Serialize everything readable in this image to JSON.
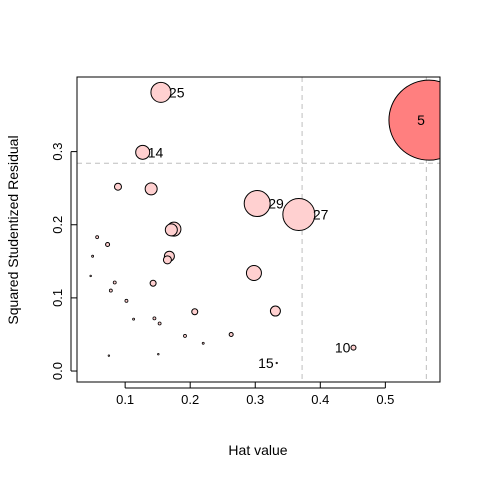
{
  "chart_data": {
    "type": "scatter",
    "title": "",
    "xlabel": "Hat value",
    "ylabel": "Squared Studentized Residual",
    "xlim": [
      0.026,
      0.584
    ],
    "ylim": [
      -0.015,
      0.402
    ],
    "x_ticks": [
      0.1,
      0.2,
      0.3,
      0.4,
      0.5
    ],
    "x_tick_labels": [
      "0.1",
      "0.2",
      "0.3",
      "0.4",
      "0.5"
    ],
    "y_ticks": [
      0.0,
      0.1,
      0.2,
      0.3
    ],
    "y_tick_labels": [
      "0.0",
      "0.1",
      "0.2",
      "0.3"
    ],
    "grid": false,
    "reference_lines": {
      "vertical": [
        0.372,
        0.563
      ],
      "horizontal": [
        0.284
      ]
    },
    "colors": {
      "highlight_fill": "#ff7f7f",
      "point_fill": "#ffd0d0",
      "reference_line": "#bebebe"
    },
    "points_note": "bubble r is the relative point size shown in the plot",
    "points": [
      {
        "x": 0.567,
        "y": 0.343,
        "r": 40,
        "label": "5",
        "highlight": true
      },
      {
        "x": 0.155,
        "y": 0.381,
        "r": 10,
        "label": "25"
      },
      {
        "x": 0.127,
        "y": 0.299,
        "r": 7,
        "label": "14"
      },
      {
        "x": 0.303,
        "y": 0.229,
        "r": 13,
        "label": "29"
      },
      {
        "x": 0.367,
        "y": 0.214,
        "r": 16,
        "label": "27"
      },
      {
        "x": 0.451,
        "y": 0.032,
        "r": 2.5,
        "label": "10"
      },
      {
        "x": 0.333,
        "y": 0.011,
        "r": 0.7,
        "label": "15"
      },
      {
        "x": 0.14,
        "y": 0.249,
        "r": 6
      },
      {
        "x": 0.089,
        "y": 0.252,
        "r": 3.5
      },
      {
        "x": 0.175,
        "y": 0.194,
        "r": 7
      },
      {
        "x": 0.171,
        "y": 0.193,
        "r": 6
      },
      {
        "x": 0.168,
        "y": 0.157,
        "r": 5
      },
      {
        "x": 0.165,
        "y": 0.152,
        "r": 4
      },
      {
        "x": 0.298,
        "y": 0.134,
        "r": 7.5
      },
      {
        "x": 0.143,
        "y": 0.12,
        "r": 3
      },
      {
        "x": 0.207,
        "y": 0.081,
        "r": 3
      },
      {
        "x": 0.331,
        "y": 0.082,
        "r": 5
      },
      {
        "x": 0.073,
        "y": 0.173,
        "r": 2
      },
      {
        "x": 0.057,
        "y": 0.183,
        "r": 1.5
      },
      {
        "x": 0.05,
        "y": 0.157,
        "r": 1
      },
      {
        "x": 0.047,
        "y": 0.13,
        "r": 0.8
      },
      {
        "x": 0.084,
        "y": 0.121,
        "r": 1.5
      },
      {
        "x": 0.078,
        "y": 0.11,
        "r": 1.5
      },
      {
        "x": 0.102,
        "y": 0.096,
        "r": 1.5
      },
      {
        "x": 0.113,
        "y": 0.071,
        "r": 1
      },
      {
        "x": 0.145,
        "y": 0.072,
        "r": 1.5
      },
      {
        "x": 0.153,
        "y": 0.065,
        "r": 1.5
      },
      {
        "x": 0.192,
        "y": 0.048,
        "r": 1.5
      },
      {
        "x": 0.263,
        "y": 0.05,
        "r": 2
      },
      {
        "x": 0.22,
        "y": 0.038,
        "r": 1
      },
      {
        "x": 0.075,
        "y": 0.021,
        "r": 0.8
      },
      {
        "x": 0.151,
        "y": 0.023,
        "r": 0.8
      }
    ]
  }
}
